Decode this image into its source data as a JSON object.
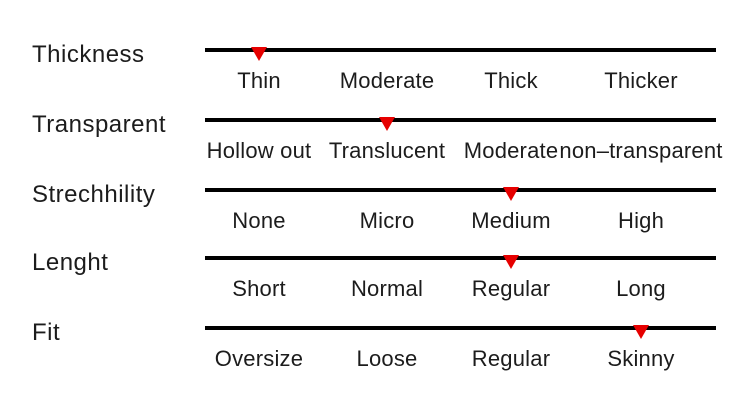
{
  "colors": {
    "marker": "#e60000",
    "track": "#000000",
    "text": "#1c1c1c",
    "background": "#ffffff"
  },
  "attributes": [
    {
      "label": "Thickness",
      "options": [
        "Thin",
        "Moderate",
        "Thick",
        "Thicker"
      ],
      "selected_index": 0,
      "selected_option": "Thin"
    },
    {
      "label": "Transparent",
      "options": [
        "Hollow out",
        "Translucent",
        "Moderate",
        "non–transparent"
      ],
      "selected_index": 1,
      "selected_option": "Translucent"
    },
    {
      "label": "Strechhility",
      "options": [
        "None",
        "Micro",
        "Medium",
        "High"
      ],
      "selected_index": 2,
      "selected_option": "Medium"
    },
    {
      "label": "Lenght",
      "options": [
        "Short",
        "Normal",
        "Regular",
        "Long"
      ],
      "selected_index": 2,
      "selected_option": "Regular"
    },
    {
      "label": "Fit",
      "options": [
        "Oversize",
        "Loose",
        "Regular",
        "Skinny"
      ],
      "selected_index": 3,
      "selected_option": "Skinny"
    }
  ]
}
